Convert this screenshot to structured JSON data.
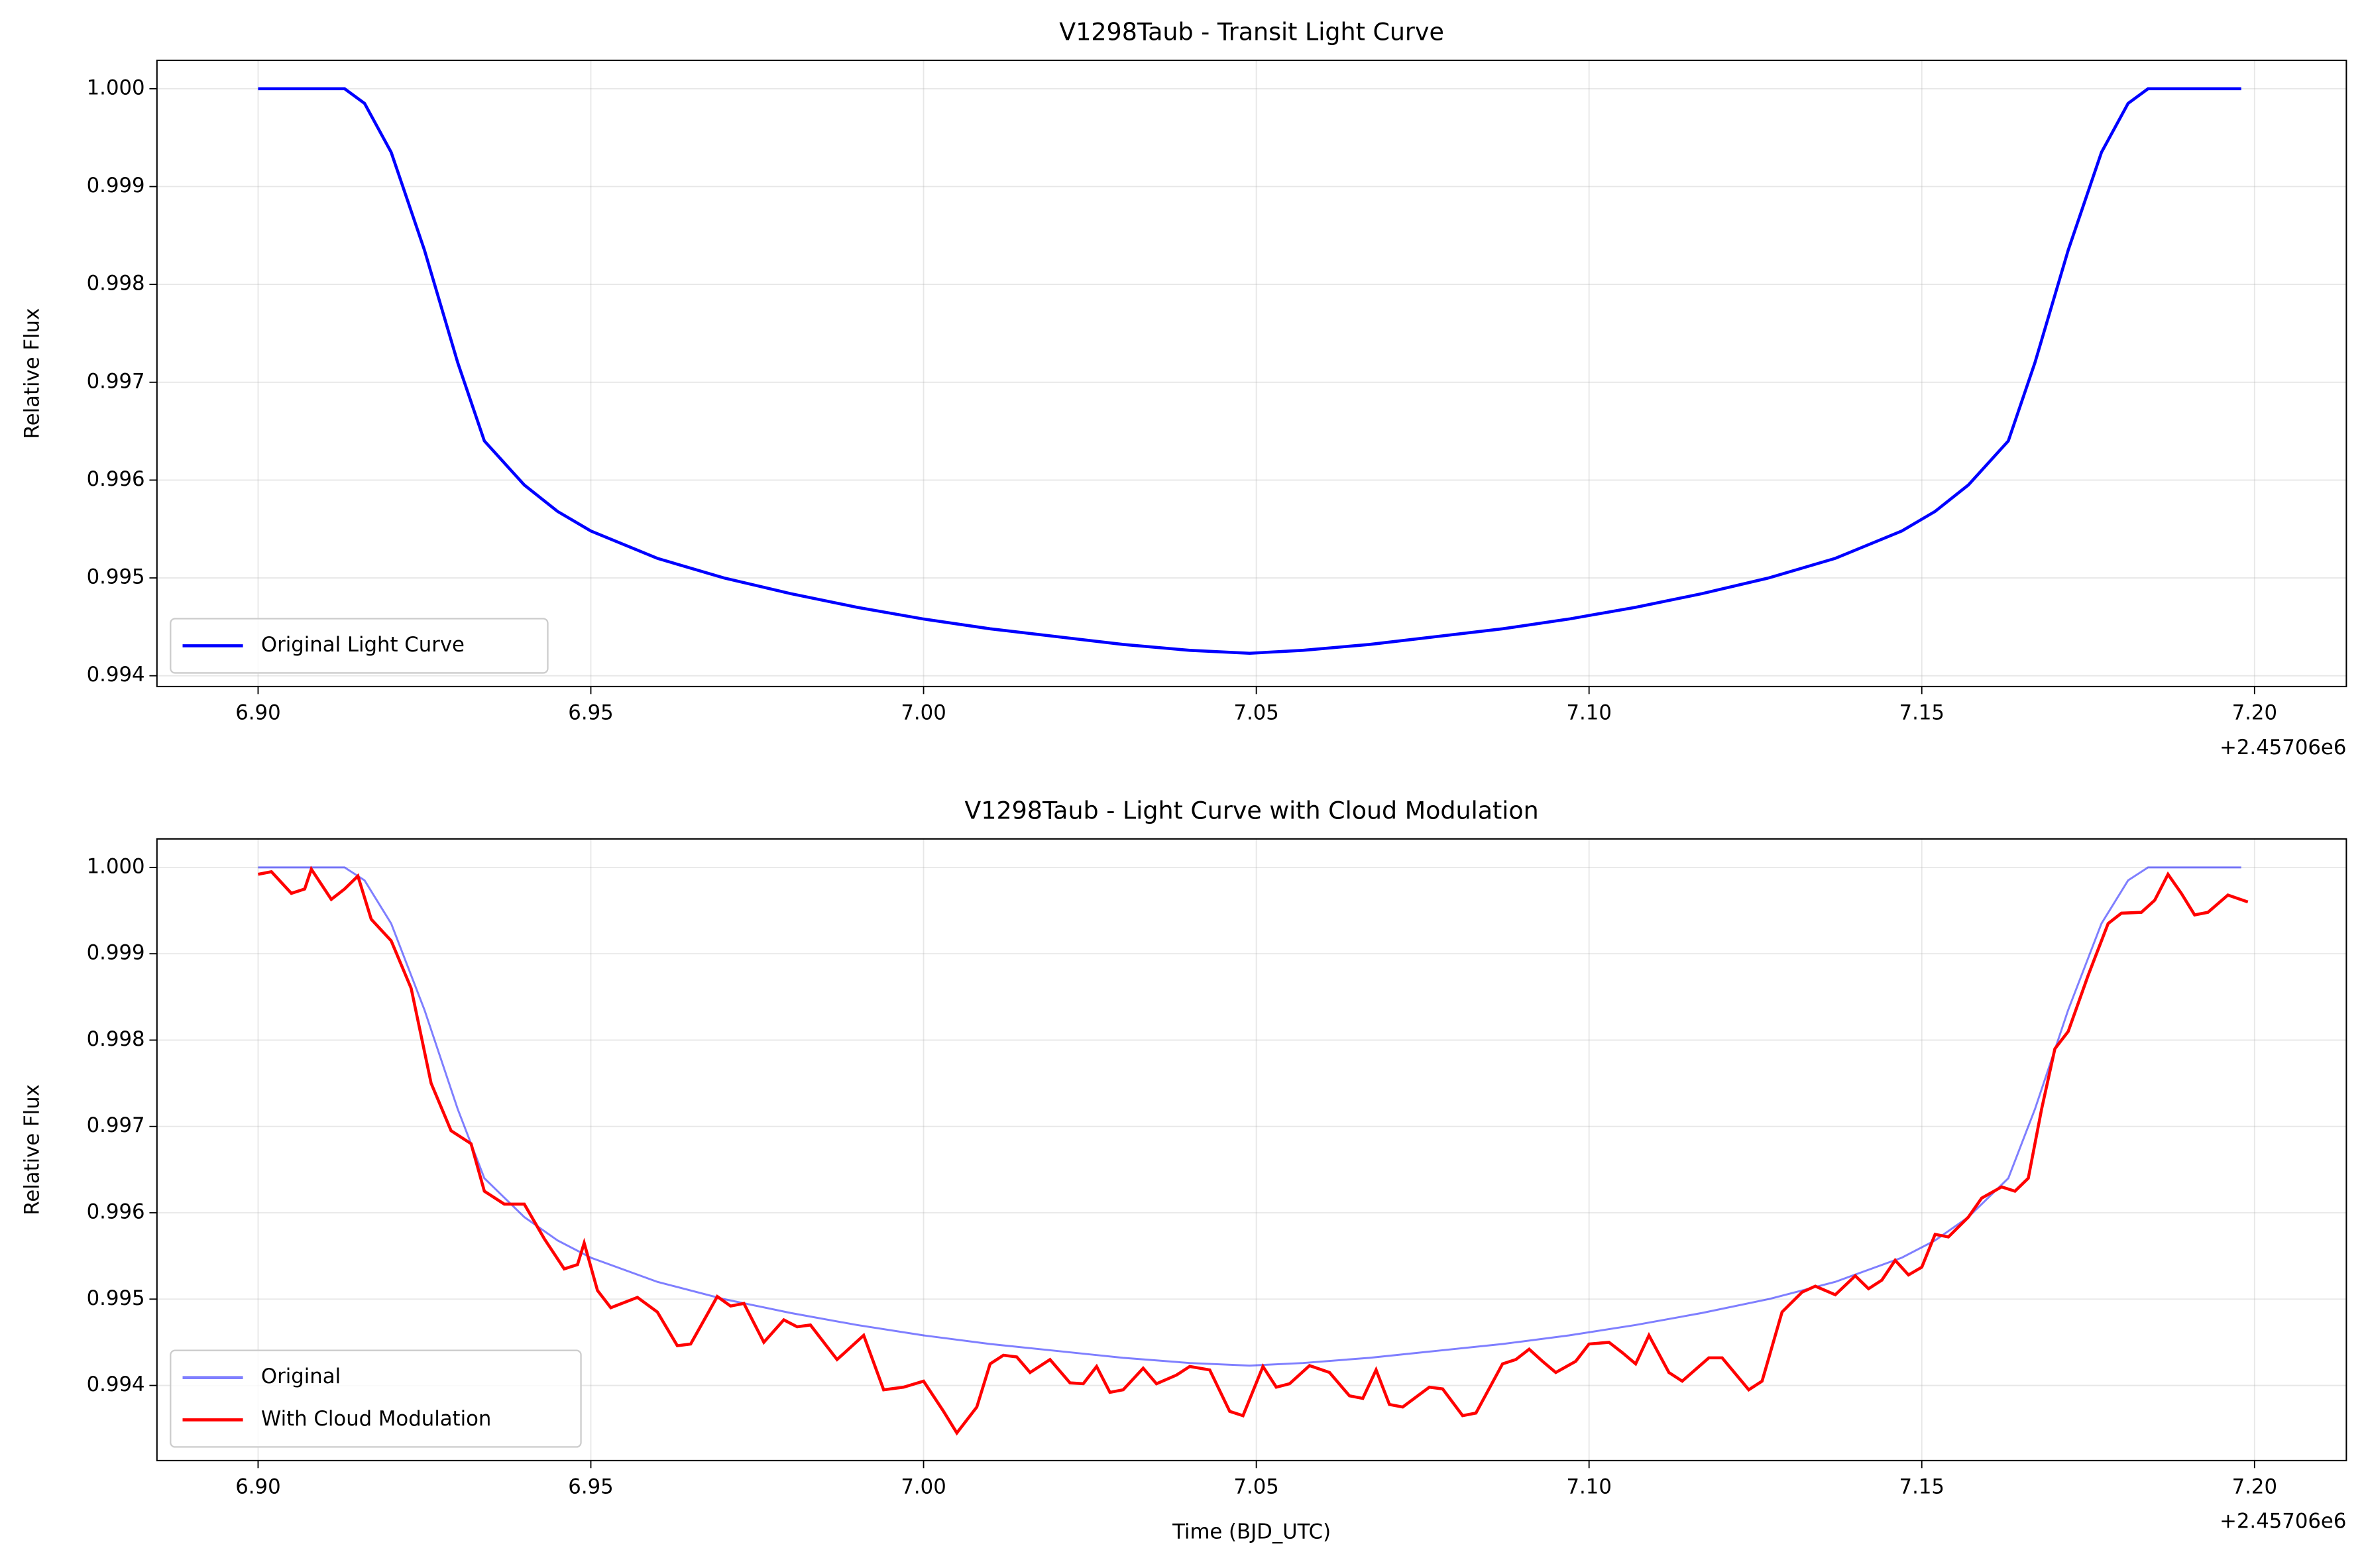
{
  "chart_data": [
    {
      "type": "line",
      "title": "V1298Taub - Transit Light Curve",
      "ylabel": "Relative Flux",
      "x_offset_label": "+2.45706e6",
      "xlim": [
        6.8848,
        7.2138
      ],
      "ylim": [
        0.99389,
        1.00029
      ],
      "xticks": [
        {
          "value": 6.9,
          "label": "6.90"
        },
        {
          "value": 6.95,
          "label": "6.95"
        },
        {
          "value": 7.0,
          "label": "7.00"
        },
        {
          "value": 7.05,
          "label": "7.05"
        },
        {
          "value": 7.1,
          "label": "7.10"
        },
        {
          "value": 7.15,
          "label": "7.15"
        },
        {
          "value": 7.2,
          "label": "7.20"
        }
      ],
      "yticks": [
        {
          "value": 0.994,
          "label": "0.994"
        },
        0.995,
        0.996,
        0.997,
        0.998,
        0.999,
        {
          "value": 1.0,
          "label": "1.000"
        }
      ],
      "grid": true,
      "legend": "lower left",
      "series": [
        {
          "name": "Original Light Curve",
          "color": "#0000ff",
          "alpha": 1,
          "x": [
            6.9,
            6.905,
            6.91,
            6.913,
            6.916,
            6.92,
            6.925,
            6.93,
            6.934,
            6.94,
            6.945,
            6.95,
            6.96,
            6.97,
            6.98,
            6.99,
            7.0,
            7.01,
            7.02,
            7.03,
            7.04,
            7.049,
            7.057,
            7.067,
            7.077,
            7.087,
            7.097,
            7.107,
            7.117,
            7.127,
            7.137,
            7.147,
            7.152,
            7.157,
            7.163,
            7.167,
            7.172,
            7.177,
            7.181,
            7.184,
            7.19,
            7.198
          ],
          "values": [
            1.0,
            1.0,
            1.0,
            1.0,
            0.99985,
            0.99935,
            0.99835,
            0.9972,
            0.9964,
            0.99595,
            0.99568,
            0.99548,
            0.9952,
            0.995,
            0.99484,
            0.9947,
            0.99458,
            0.99448,
            0.9944,
            0.99432,
            0.99426,
            0.99423,
            0.99426,
            0.99432,
            0.9944,
            0.99448,
            0.99458,
            0.9947,
            0.99484,
            0.995,
            0.9952,
            0.99548,
            0.99568,
            0.99595,
            0.9964,
            0.9972,
            0.99835,
            0.99935,
            0.99985,
            1.0,
            1.0,
            1.0
          ]
        }
      ]
    },
    {
      "type": "line",
      "title": "V1298Taub - Light Curve with Cloud Modulation",
      "ylabel": "Relative Flux",
      "xlabel": "Time (BJD_UTC)",
      "x_offset_label": "+2.45706e6",
      "xlim": [
        6.8848,
        7.2138
      ],
      "ylim": [
        0.99313,
        1.00033
      ],
      "xticks": [
        {
          "value": 6.9,
          "label": "6.90"
        },
        {
          "value": 6.95,
          "label": "6.95"
        },
        {
          "value": 7.0,
          "label": "7.00"
        },
        {
          "value": 7.05,
          "label": "7.05"
        },
        {
          "value": 7.1,
          "label": "7.10"
        },
        {
          "value": 7.15,
          "label": "7.15"
        },
        {
          "value": 7.2,
          "label": "7.20"
        }
      ],
      "yticks": [
        {
          "value": 0.994,
          "label": "0.994"
        },
        0.995,
        0.996,
        0.997,
        0.998,
        0.999,
        {
          "value": 1.0,
          "label": "1.000"
        }
      ],
      "grid": true,
      "legend": "lower left",
      "series": [
        {
          "name": "Original",
          "color": "#0000ff",
          "alpha": 0.5,
          "x": [
            6.9,
            6.905,
            6.91,
            6.913,
            6.916,
            6.92,
            6.925,
            6.93,
            6.934,
            6.94,
            6.945,
            6.95,
            6.96,
            6.97,
            6.98,
            6.99,
            7.0,
            7.01,
            7.02,
            7.03,
            7.04,
            7.049,
            7.057,
            7.067,
            7.077,
            7.087,
            7.097,
            7.107,
            7.117,
            7.127,
            7.137,
            7.147,
            7.152,
            7.157,
            7.163,
            7.167,
            7.172,
            7.177,
            7.181,
            7.184,
            7.19,
            7.198
          ],
          "values": [
            1.0,
            1.0,
            1.0,
            1.0,
            0.99985,
            0.99935,
            0.99835,
            0.9972,
            0.9964,
            0.99595,
            0.99568,
            0.99548,
            0.9952,
            0.995,
            0.99484,
            0.9947,
            0.99458,
            0.99448,
            0.9944,
            0.99432,
            0.99426,
            0.99423,
            0.99426,
            0.99432,
            0.9944,
            0.99448,
            0.99458,
            0.9947,
            0.99484,
            0.995,
            0.9952,
            0.99548,
            0.99568,
            0.99595,
            0.9964,
            0.9972,
            0.99835,
            0.99935,
            0.99985,
            1.0,
            1.0,
            1.0
          ]
        },
        {
          "name": "With Cloud Modulation",
          "color": "#ff0000",
          "alpha": 1,
          "x": [
            6.9,
            6.902,
            6.905,
            6.907,
            6.908,
            6.911,
            6.913,
            6.915,
            6.917,
            6.92,
            6.923,
            6.926,
            6.929,
            6.932,
            6.934,
            6.937,
            6.94,
            6.943,
            6.946,
            6.948,
            6.949,
            6.951,
            6.953,
            6.957,
            6.96,
            6.963,
            6.965,
            6.969,
            6.971,
            6.973,
            6.976,
            6.979,
            6.981,
            6.983,
            6.987,
            6.991,
            6.994,
            6.997,
            7.0,
            7.003,
            7.005,
            7.008,
            7.01,
            7.012,
            7.014,
            7.016,
            7.019,
            7.022,
            7.024,
            7.026,
            7.028,
            7.03,
            7.033,
            7.035,
            7.038,
            7.04,
            7.043,
            7.046,
            7.048,
            7.051,
            7.053,
            7.055,
            7.058,
            7.061,
            7.064,
            7.066,
            7.068,
            7.07,
            7.072,
            7.076,
            7.078,
            7.081,
            7.083,
            7.087,
            7.089,
            7.091,
            7.093,
            7.095,
            7.098,
            7.1,
            7.103,
            7.105,
            7.107,
            7.109,
            7.112,
            7.114,
            7.118,
            7.12,
            7.124,
            7.126,
            7.129,
            7.132,
            7.134,
            7.137,
            7.14,
            7.142,
            7.144,
            7.146,
            7.148,
            7.15,
            7.152,
            7.154,
            7.157,
            7.159,
            7.162,
            7.164,
            7.166,
            7.168,
            7.17,
            7.172,
            7.175,
            7.178,
            7.18,
            7.183,
            7.185,
            7.187,
            7.189,
            7.191,
            7.193,
            7.196,
            7.199
          ],
          "values": [
            0.99992,
            0.99995,
            0.9997,
            0.99975,
            0.99998,
            0.99963,
            0.99975,
            0.9999,
            0.9994,
            0.99915,
            0.9986,
            0.9975,
            0.99695,
            0.9968,
            0.99625,
            0.9961,
            0.9961,
            0.9957,
            0.99535,
            0.9954,
            0.99565,
            0.9951,
            0.9949,
            0.99502,
            0.99485,
            0.99446,
            0.99448,
            0.99503,
            0.99492,
            0.99495,
            0.9945,
            0.99476,
            0.99468,
            0.9947,
            0.9943,
            0.99458,
            0.99395,
            0.99398,
            0.99405,
            0.9937,
            0.99345,
            0.99375,
            0.99425,
            0.99435,
            0.99433,
            0.99415,
            0.9943,
            0.99403,
            0.99402,
            0.99422,
            0.99392,
            0.99395,
            0.9942,
            0.99402,
            0.99412,
            0.99422,
            0.99418,
            0.9937,
            0.99365,
            0.99422,
            0.99398,
            0.99402,
            0.99423,
            0.99415,
            0.99388,
            0.99385,
            0.99418,
            0.99378,
            0.99375,
            0.99398,
            0.99396,
            0.99365,
            0.99368,
            0.99425,
            0.9943,
            0.99442,
            0.99428,
            0.99415,
            0.99428,
            0.99448,
            0.9945,
            0.99438,
            0.99425,
            0.99458,
            0.99415,
            0.99405,
            0.99432,
            0.99432,
            0.99395,
            0.99405,
            0.99485,
            0.99508,
            0.99515,
            0.99505,
            0.99527,
            0.99512,
            0.99522,
            0.99545,
            0.99528,
            0.99537,
            0.99575,
            0.99572,
            0.99595,
            0.99617,
            0.9963,
            0.99625,
            0.9964,
            0.9972,
            0.9979,
            0.9981,
            0.99875,
            0.99935,
            0.99947,
            0.99948,
            0.99962,
            0.99992,
            0.9997,
            0.99945,
            0.99948,
            0.99968,
            0.9996
          ]
        }
      ]
    }
  ]
}
